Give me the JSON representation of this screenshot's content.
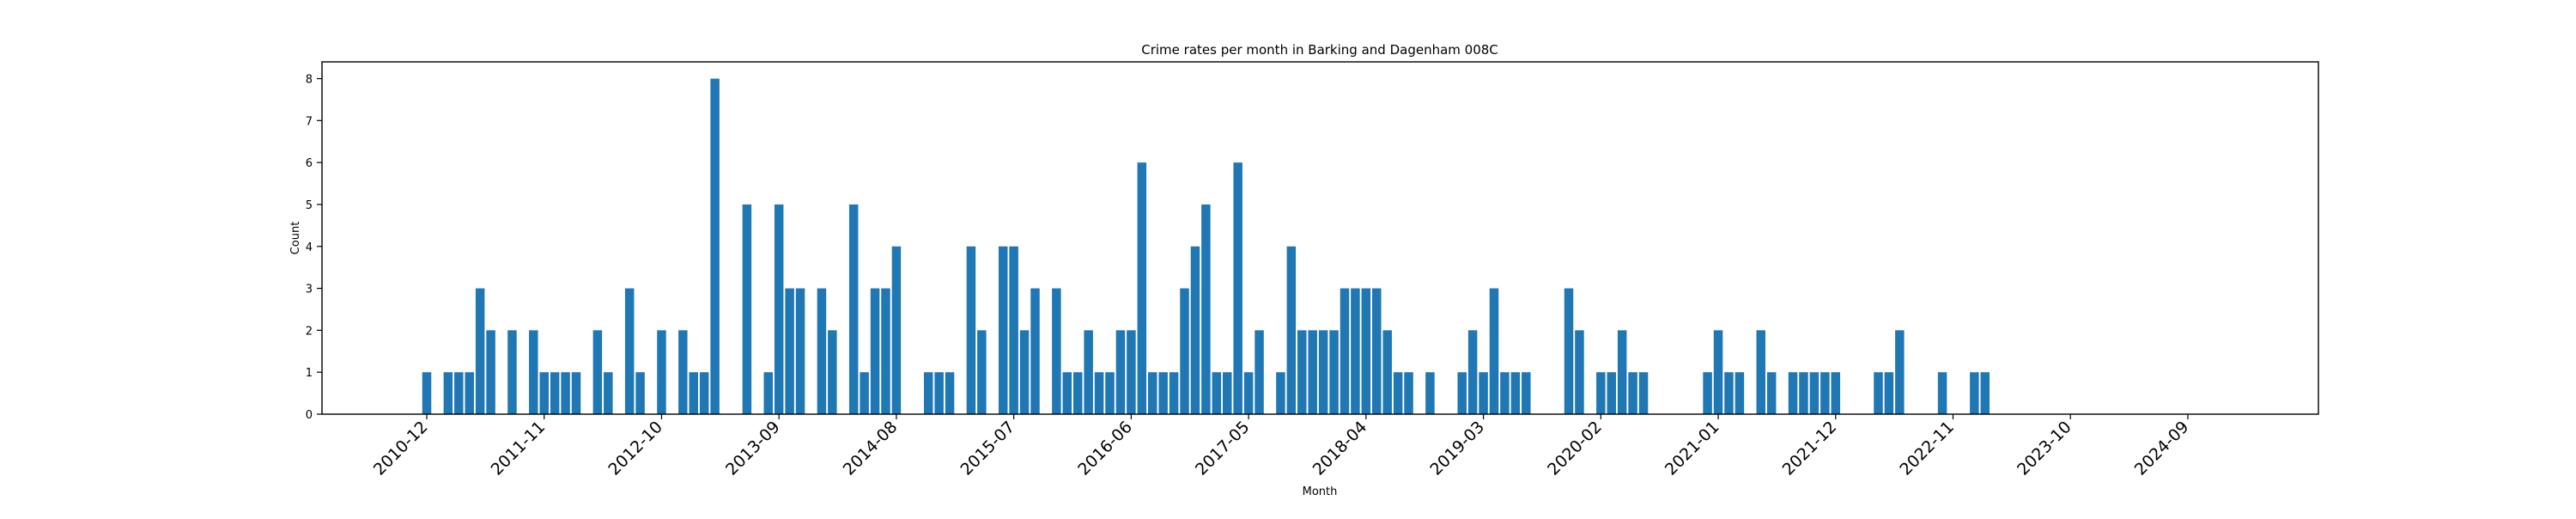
{
  "chart_data": {
    "type": "bar",
    "title": "Crime rates per month in Barking and Dagenham 008C",
    "xlabel": "Month",
    "ylabel": "Count",
    "ylim": [
      0,
      8.4
    ],
    "yticks": [
      0,
      1,
      2,
      3,
      4,
      5,
      6,
      7,
      8
    ],
    "xtick_labels": [
      "2010-12",
      "2011-11",
      "2012-10",
      "2013-09",
      "2014-08",
      "2015-07",
      "2016-06",
      "2017-05",
      "2018-04",
      "2019-03",
      "2020-02",
      "2021-01",
      "2021-12",
      "2022-11",
      "2023-10",
      "2024-09"
    ],
    "grid": false,
    "legend": "none",
    "bar_color": "#1f77b4",
    "series": [
      {
        "x": [
          "2010-12",
          "2011-02",
          "2011-03",
          "2011-04",
          "2011-05",
          "2011-06",
          "2011-08",
          "2011-10",
          "2011-11",
          "2011-12",
          "2012-01",
          "2012-02",
          "2012-04",
          "2012-05",
          "2012-07",
          "2012-08",
          "2012-10",
          "2012-12",
          "2013-01",
          "2013-02",
          "2013-03",
          "2013-06",
          "2013-08",
          "2013-09",
          "2013-10",
          "2013-11",
          "2014-01",
          "2014-02",
          "2014-04",
          "2014-05",
          "2014-06",
          "2014-07",
          "2014-08",
          "2014-11",
          "2014-12",
          "2015-01",
          "2015-03",
          "2015-04",
          "2015-06",
          "2015-07",
          "2015-08",
          "2015-09",
          "2015-11",
          "2015-12",
          "2016-01",
          "2016-02",
          "2016-03",
          "2016-04",
          "2016-05",
          "2016-06",
          "2016-07",
          "2016-08",
          "2016-09",
          "2016-10",
          "2016-11",
          "2016-12",
          "2017-01",
          "2017-02",
          "2017-03",
          "2017-04",
          "2017-05",
          "2017-06",
          "2017-08",
          "2017-09",
          "2017-10",
          "2017-11",
          "2017-12",
          "2018-01",
          "2018-02",
          "2018-03",
          "2018-04",
          "2018-05",
          "2018-06",
          "2018-07",
          "2018-08",
          "2018-10",
          "2019-01",
          "2019-02",
          "2019-03",
          "2019-04",
          "2019-05",
          "2019-06",
          "2019-07",
          "2019-11",
          "2019-12",
          "2020-02",
          "2020-03",
          "2020-04",
          "2020-05",
          "2020-06",
          "2020-12",
          "2021-01",
          "2021-02",
          "2021-03",
          "2021-05",
          "2021-06",
          "2021-08",
          "2021-09",
          "2021-10",
          "2021-11",
          "2021-12",
          "2022-04",
          "2022-05",
          "2022-06",
          "2022-10",
          "2023-01",
          "2023-02"
        ],
        "values": [
          1,
          1,
          1,
          1,
          3,
          2,
          2,
          2,
          1,
          1,
          1,
          1,
          2,
          1,
          3,
          1,
          2,
          2,
          1,
          1,
          8,
          5,
          1,
          5,
          3,
          3,
          3,
          2,
          5,
          1,
          3,
          3,
          4,
          1,
          1,
          1,
          4,
          2,
          4,
          4,
          2,
          3,
          3,
          1,
          1,
          2,
          1,
          1,
          2,
          2,
          6,
          1,
          1,
          1,
          3,
          4,
          5,
          1,
          1,
          6,
          1,
          2,
          1,
          4,
          2,
          2,
          2,
          2,
          3,
          3,
          3,
          3,
          2,
          1,
          1,
          1,
          1,
          2,
          1,
          3,
          1,
          1,
          1,
          3,
          2,
          1,
          1,
          2,
          1,
          1,
          1,
          2,
          1,
          1,
          2,
          1,
          1,
          1,
          1,
          1,
          1,
          1,
          1,
          2,
          1,
          1,
          1
        ]
      }
    ]
  }
}
